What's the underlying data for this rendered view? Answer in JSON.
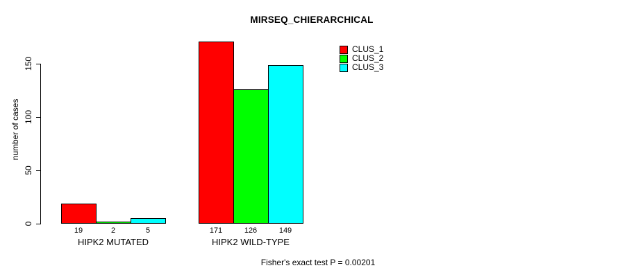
{
  "title": "MIRSEQ_CHIERARCHICAL",
  "chart_data": {
    "type": "bar",
    "title": "MIRSEQ_CHIERARCHICAL",
    "categories": [
      "HIPK2 MUTATED",
      "HIPK2 WILD-TYPE"
    ],
    "series": [
      {
        "name": "CLUS_1",
        "color": "#ff0000",
        "values": [
          19,
          171
        ]
      },
      {
        "name": "CLUS_2",
        "color": "#00ff00",
        "values": [
          2,
          126
        ]
      },
      {
        "name": "CLUS_3",
        "color": "#00ffff",
        "values": [
          5,
          149
        ]
      }
    ],
    "ylabel": "number of cases",
    "xlabel": "",
    "yticks": [
      0,
      50,
      100,
      150
    ],
    "ylim": [
      0,
      175
    ],
    "grid": false,
    "legend_position": "top-right",
    "bar_value_labels": true,
    "annotation": "Fisher's exact test P = 0.00201"
  },
  "footer": {
    "note": "Fisher's exact test P = 0.00201"
  }
}
